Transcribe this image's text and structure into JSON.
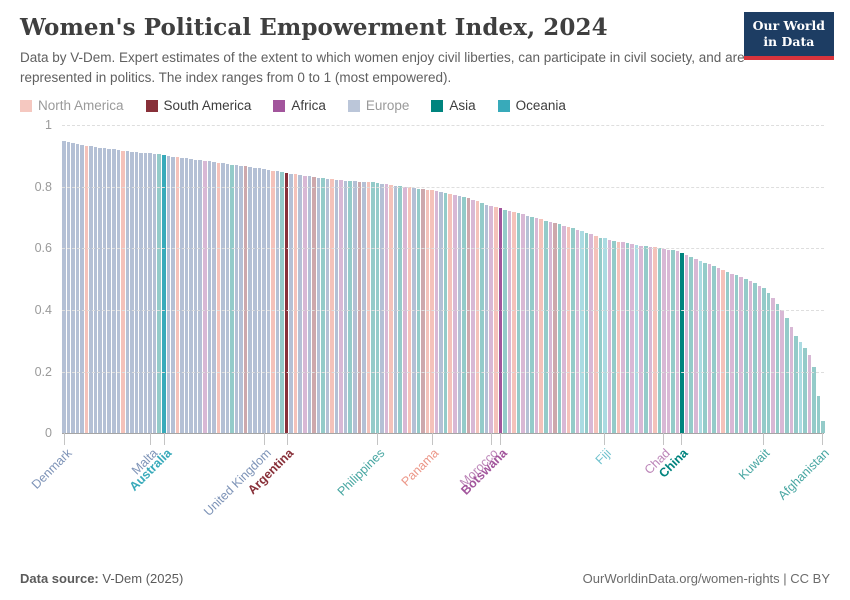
{
  "header": {
    "title": "Women's Political Empowerment Index, 2024",
    "subtitle": "Data by V-Dem. Expert estimates of the extent to which women enjoy civil liberties, can participate in civil society, and are represented in politics. The index ranges from 0 to 1 (most empowered).",
    "logo_line1": "Our World",
    "logo_line2": "in Data"
  },
  "colors": {
    "logo_bg": "#1d3d63",
    "logo_accent": "#d8343c",
    "title": "#3f3f3f",
    "subtitle": "#606060",
    "axis": "#a5a5a5",
    "grid": "#dedede",
    "tick_label": "#9a9a9a",
    "footer": "#5b5b5b"
  },
  "legend": [
    {
      "label": "North America",
      "continent": "NA",
      "faded": true
    },
    {
      "label": "South America",
      "continent": "SA",
      "faded": false
    },
    {
      "label": "Africa",
      "continent": "AF",
      "faded": false
    },
    {
      "label": "Europe",
      "continent": "EU",
      "faded": true
    },
    {
      "label": "Asia",
      "continent": "AS",
      "faded": false
    },
    {
      "label": "Oceania",
      "continent": "OC",
      "faded": false
    }
  ],
  "chart_data": {
    "type": "bar",
    "title": "Women's Political Empowerment Index, 2024",
    "xlabel": "",
    "ylabel": "",
    "ylim": [
      0,
      1
    ],
    "grid": "horizontal-dashed",
    "sort": "descending",
    "yticks": [
      [
        0,
        "0"
      ],
      [
        0.2,
        "0.2"
      ],
      [
        0.4,
        "0.4"
      ],
      [
        0.6,
        "0.6"
      ],
      [
        0.8,
        "0.8"
      ],
      [
        1,
        "1"
      ]
    ],
    "continent_colors": {
      "NA": "#E56E5A",
      "SA": "#883039",
      "AF": "#A2559C",
      "EU": "#4C6A9C",
      "AS": "#00847E",
      "OC": "#38AABA"
    },
    "labeled_countries": [
      "Denmark",
      "Malta",
      "Australia",
      "United Kingdom",
      "Argentina",
      "Philippines",
      "Panama",
      "Morocco",
      "Botswana",
      "Fiji",
      "Chad",
      "China",
      "Kuwait",
      "Afghanistan"
    ],
    "highlighted_countries": [
      "Australia",
      "Argentina",
      "Botswana",
      "China"
    ],
    "bars": [
      [
        0.95,
        "EU",
        "Denmark"
      ],
      [
        0.945,
        "EU"
      ],
      [
        0.941,
        "EU"
      ],
      [
        0.938,
        "EU"
      ],
      [
        0.935,
        "EU"
      ],
      [
        0.933,
        "NA"
      ],
      [
        0.931,
        "EU"
      ],
      [
        0.929,
        "EU"
      ],
      [
        0.927,
        "EU"
      ],
      [
        0.925,
        "EU"
      ],
      [
        0.923,
        "EU"
      ],
      [
        0.921,
        "EU"
      ],
      [
        0.919,
        "EU"
      ],
      [
        0.917,
        "NA"
      ],
      [
        0.915,
        "EU"
      ],
      [
        0.913,
        "EU"
      ],
      [
        0.912,
        "EU"
      ],
      [
        0.911,
        "EU"
      ],
      [
        0.91,
        "EU"
      ],
      [
        0.908,
        "EU",
        "Malta"
      ],
      [
        0.906,
        "EU"
      ],
      [
        0.905,
        "AS"
      ],
      [
        0.904,
        "OC",
        "Australia",
        1
      ],
      [
        0.9,
        "EU"
      ],
      [
        0.898,
        "EU"
      ],
      [
        0.896,
        "NA"
      ],
      [
        0.894,
        "EU"
      ],
      [
        0.892,
        "EU"
      ],
      [
        0.89,
        "EU"
      ],
      [
        0.888,
        "EU"
      ],
      [
        0.886,
        "EU"
      ],
      [
        0.884,
        "AF"
      ],
      [
        0.882,
        "EU"
      ],
      [
        0.88,
        "EU"
      ],
      [
        0.878,
        "NA"
      ],
      [
        0.876,
        "EU"
      ],
      [
        0.874,
        "EU"
      ],
      [
        0.872,
        "AS"
      ],
      [
        0.87,
        "EU"
      ],
      [
        0.868,
        "EU"
      ],
      [
        0.866,
        "SA"
      ],
      [
        0.864,
        "EU"
      ],
      [
        0.862,
        "EU"
      ],
      [
        0.86,
        "EU"
      ],
      [
        0.858,
        "EU",
        "United Kingdom"
      ],
      [
        0.855,
        "EU"
      ],
      [
        0.852,
        "NA"
      ],
      [
        0.85,
        "EU"
      ],
      [
        0.848,
        "AS"
      ],
      [
        0.845,
        "SA",
        "Argentina",
        1
      ],
      [
        0.842,
        "EU"
      ],
      [
        0.84,
        "NA"
      ],
      [
        0.838,
        "EU"
      ],
      [
        0.836,
        "AF"
      ],
      [
        0.834,
        "EU"
      ],
      [
        0.832,
        "SA"
      ],
      [
        0.83,
        "EU"
      ],
      [
        0.828,
        "AS"
      ],
      [
        0.826,
        "EU"
      ],
      [
        0.824,
        "NA"
      ],
      [
        0.822,
        "EU"
      ],
      [
        0.821,
        "AF"
      ],
      [
        0.82,
        "EU"
      ],
      [
        0.819,
        "AS"
      ],
      [
        0.818,
        "EU"
      ],
      [
        0.817,
        "SA"
      ],
      [
        0.816,
        "EU"
      ],
      [
        0.815,
        "NA"
      ],
      [
        0.814,
        "AS"
      ],
      [
        0.813,
        "AS",
        "Philippines"
      ],
      [
        0.81,
        "EU"
      ],
      [
        0.808,
        "AF"
      ],
      [
        0.806,
        "NA"
      ],
      [
        0.804,
        "EU"
      ],
      [
        0.802,
        "AS"
      ],
      [
        0.8,
        "AF"
      ],
      [
        0.798,
        "NA"
      ],
      [
        0.796,
        "EU"
      ],
      [
        0.794,
        "AS"
      ],
      [
        0.792,
        "SA"
      ],
      [
        0.791,
        "NA"
      ],
      [
        0.79,
        "NA",
        "Panama"
      ],
      [
        0.785,
        "AF"
      ],
      [
        0.782,
        "EU"
      ],
      [
        0.779,
        "AS"
      ],
      [
        0.776,
        "NA"
      ],
      [
        0.773,
        "AF"
      ],
      [
        0.77,
        "EU"
      ],
      [
        0.766,
        "AS"
      ],
      [
        0.762,
        "SA"
      ],
      [
        0.758,
        "AF"
      ],
      [
        0.754,
        "NA"
      ],
      [
        0.748,
        "AS"
      ],
      [
        0.742,
        "EU"
      ],
      [
        0.737,
        "AF",
        "Morocco"
      ],
      [
        0.734,
        "NA"
      ],
      [
        0.731,
        "AF",
        "Botswana",
        1
      ],
      [
        0.726,
        "AS"
      ],
      [
        0.722,
        "AF"
      ],
      [
        0.718,
        "NA"
      ],
      [
        0.714,
        "AS"
      ],
      [
        0.71,
        "AF"
      ],
      [
        0.706,
        "EU"
      ],
      [
        0.702,
        "AS"
      ],
      [
        0.698,
        "AF"
      ],
      [
        0.694,
        "NA"
      ],
      [
        0.69,
        "AS"
      ],
      [
        0.686,
        "AF"
      ],
      [
        0.682,
        "SA"
      ],
      [
        0.678,
        "AS"
      ],
      [
        0.674,
        "AF"
      ],
      [
        0.67,
        "NA"
      ],
      [
        0.665,
        "AS"
      ],
      [
        0.66,
        "AF"
      ],
      [
        0.655,
        "OC"
      ],
      [
        0.65,
        "AS"
      ],
      [
        0.645,
        "AF"
      ],
      [
        0.64,
        "NA"
      ],
      [
        0.635,
        "AS"
      ],
      [
        0.632,
        "OC",
        "Fiji"
      ],
      [
        0.628,
        "AF"
      ],
      [
        0.625,
        "AS"
      ],
      [
        0.622,
        "NA"
      ],
      [
        0.619,
        "AF"
      ],
      [
        0.616,
        "AS"
      ],
      [
        0.613,
        "AF"
      ],
      [
        0.611,
        "OC"
      ],
      [
        0.609,
        "AF"
      ],
      [
        0.607,
        "AS"
      ],
      [
        0.605,
        "AF"
      ],
      [
        0.603,
        "NA"
      ],
      [
        0.601,
        "AS"
      ],
      [
        0.599,
        "AF",
        "Chad"
      ],
      [
        0.596,
        "AF"
      ],
      [
        0.593,
        "AS"
      ],
      [
        0.59,
        "AF"
      ],
      [
        0.586,
        "AS",
        "China",
        1
      ],
      [
        0.578,
        "AF"
      ],
      [
        0.572,
        "AS"
      ],
      [
        0.566,
        "AF"
      ],
      [
        0.56,
        "OC"
      ],
      [
        0.554,
        "AS"
      ],
      [
        0.548,
        "AF"
      ],
      [
        0.542,
        "AS"
      ],
      [
        0.536,
        "AF"
      ],
      [
        0.53,
        "NA"
      ],
      [
        0.524,
        "AS"
      ],
      [
        0.518,
        "AF"
      ],
      [
        0.512,
        "AS"
      ],
      [
        0.506,
        "AF"
      ],
      [
        0.5,
        "AS"
      ],
      [
        0.494,
        "AF"
      ],
      [
        0.486,
        "AS"
      ],
      [
        0.478,
        "AF"
      ],
      [
        0.47,
        "AS",
        "Kuwait"
      ],
      [
        0.455,
        "AS"
      ],
      [
        0.44,
        "AF"
      ],
      [
        0.42,
        "AS"
      ],
      [
        0.4,
        "AF"
      ],
      [
        0.375,
        "AS"
      ],
      [
        0.345,
        "AF"
      ],
      [
        0.315,
        "AS"
      ],
      [
        0.295,
        "OC"
      ],
      [
        0.275,
        "AS"
      ],
      [
        0.255,
        "AF"
      ],
      [
        0.215,
        "AS"
      ],
      [
        0.12,
        "AS"
      ],
      [
        0.04,
        "AS",
        "Afghanistan"
      ]
    ]
  },
  "footer": {
    "source_label": "Data source:",
    "source": " V-Dem (2025)",
    "right": "OurWorldinData.org/women-rights | CC BY"
  }
}
